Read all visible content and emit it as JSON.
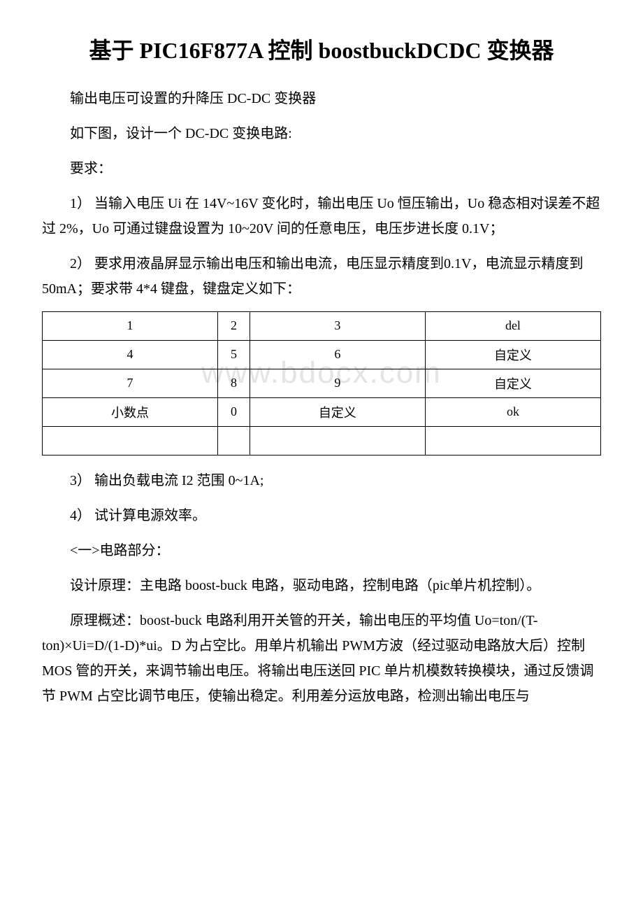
{
  "title": "基于 PIC16F877A 控制 boostbuckDCDC 变换器",
  "intro1": "输出电压可设置的升降压 DC-DC 变换器",
  "intro2": "如下图，设计一个 DC-DC 变换电路:",
  "reqLabel": "要求：",
  "req1": "1）  当输入电压 Ui 在 14V~16V 变化时，输出电压 Uo 恒压输出，Uo 稳态相对误差不超过 2%，Uo 可通过键盘设置为 10~20V 间的任意电压，电压步进长度 0.1V；",
  "req2": "2）  要求用液晶屏显示输出电压和输出电流，电压显示精度到0.1V，电流显示精度到 50mA；要求带 4*4 键盘，键盘定义如下：",
  "keypad": {
    "rows": [
      [
        "1",
        "2",
        "3",
        "del"
      ],
      [
        "4",
        "5",
        "6",
        "自定义"
      ],
      [
        "7",
        "8",
        "9",
        "自定义"
      ],
      [
        "小数点",
        "0",
        "自定义",
        "ok"
      ],
      [
        "",
        "",
        "",
        ""
      ]
    ]
  },
  "watermark": "www.bdocx.com",
  "req3": "3）  输出负载电流 I2 范围 0~1A;",
  "req4": "4）  试计算电源效率。",
  "section1": "<一>电路部分：",
  "design": "设计原理：主电路 boost-buck 电路，驱动电路，控制电路（pic单片机控制）。",
  "principle": "原理概述：boost-buck 电路利用开关管的开关，输出电压的平均值 Uo=ton/(T-ton)×Ui=D/(1-D)*ui。D 为占空比。用单片机输出 PWM方波（经过驱动电路放大后）控制 MOS 管的开关，来调节输出电压。将输出电压送回 PIC 单片机模数转换模块，通过反馈调节 PWM 占空比调节电压，使输出稳定。利用差分运放电路，检测出输出电压与"
}
